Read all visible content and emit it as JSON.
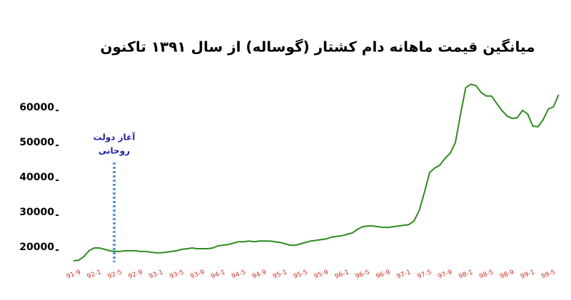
{
  "chart_data": {
    "type": "line",
    "title": "میانگین قیمت ماهانه دام کشتار (گوساله) از سال ۱۳۹۱ تاکنون",
    "annotation": [
      "آغاز دولت",
      "روحانی"
    ],
    "categories": [
      "91-9",
      null,
      null,
      null,
      "92-1",
      null,
      null,
      null,
      "92-5",
      null,
      null,
      null,
      "92-9",
      null,
      null,
      null,
      "93-1",
      null,
      null,
      null,
      "93-5",
      null,
      null,
      null,
      "93-9",
      null,
      null,
      null,
      "94-1",
      null,
      null,
      null,
      "94-5",
      null,
      null,
      null,
      "94-9",
      null,
      null,
      null,
      "95-1",
      null,
      null,
      null,
      "95-5",
      null,
      null,
      null,
      "95-9",
      null,
      null,
      null,
      "96-1",
      null,
      null,
      null,
      "96-5",
      null,
      null,
      null,
      "96-9",
      null,
      null,
      null,
      "97-1",
      null,
      null,
      null,
      "97-5",
      null,
      null,
      null,
      "97-9",
      null,
      null,
      null,
      "98-1",
      null,
      null,
      null,
      "98-5",
      null,
      null,
      null,
      "98-9",
      null,
      null,
      null,
      "99-1",
      null,
      null,
      null,
      "99-5",
      null,
      null
    ],
    "series": [
      {
        "color": "#2e8b1e",
        "values": [
          16100,
          16300,
          17300,
          19000,
          19800,
          19800,
          19400,
          19000,
          18800,
          18800,
          19000,
          19000,
          19000,
          18800,
          18800,
          18600,
          18400,
          18400,
          18600,
          18800,
          19000,
          19400,
          19600,
          19800,
          19600,
          19600,
          19600,
          19800,
          20400,
          20600,
          20800,
          21200,
          21600,
          21600,
          21800,
          21600,
          21800,
          21800,
          21800,
          21600,
          21400,
          21000,
          20600,
          20600,
          21000,
          21400,
          21800,
          22000,
          22200,
          22400,
          22900,
          23100,
          23300,
          23700,
          24100,
          25100,
          25900,
          26100,
          26100,
          25900,
          25700,
          25700,
          25900,
          26100,
          26300,
          26500,
          27600,
          30600,
          35700,
          41400,
          42700,
          43500,
          45500,
          46900,
          50000,
          58200,
          65700,
          66700,
          66300,
          64300,
          63300,
          63300,
          61200,
          59200,
          57600,
          56900,
          57100,
          59200,
          58200,
          54700,
          54500,
          56500,
          59600,
          60200,
          63700
        ]
      }
    ],
    "ylim": [
      14000,
      68000
    ],
    "yticks": [
      20000,
      30000,
      40000,
      50000,
      60000
    ],
    "tick_color": "#c0392b",
    "annotation_color": "#1f1f9f"
  }
}
